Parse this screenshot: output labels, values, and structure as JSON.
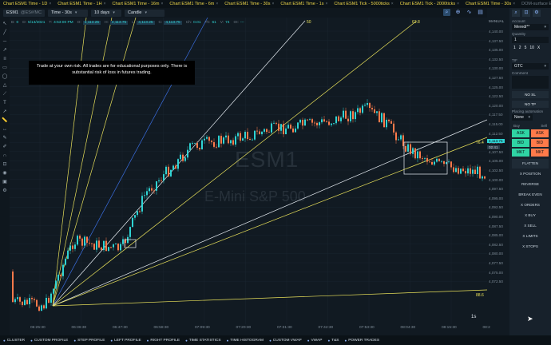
{
  "tabs": [
    {
      "label": "Chart ESM1 Time - 1D",
      "active": true
    },
    {
      "label": "Chart ESM1 Time - 1H",
      "active": true
    },
    {
      "label": "Chart ESM1 Time - 16m",
      "active": true
    },
    {
      "label": "Chart ESM1 Time - 6m",
      "active": true
    },
    {
      "label": "Chart ESM1 Time - 30s",
      "active": true
    },
    {
      "label": "Chart ESM1 Time - 1s",
      "active": true
    },
    {
      "label": "Chart ESM1 Tick - 5000ticks",
      "active": true
    },
    {
      "label": "Chart ESM1 Tick - 2000ticks",
      "active": true
    },
    {
      "label": "Chart ESM1 Time - 30s",
      "active": true
    },
    {
      "label": "DOM-surface ESM1",
      "active": false
    }
  ],
  "toolbar": {
    "symbol": "ESM1",
    "symbol_sub": "@ES#/MC",
    "timeframe": "Time - 30s",
    "range": "10 days",
    "chart_style": "Candle"
  },
  "info": [
    {
      "k": "B:",
      "v": "0"
    },
    {
      "k": "D:",
      "v": "5/13/2021"
    },
    {
      "k": "T:",
      "v": "4:53:00 PM"
    },
    {
      "k": "O:",
      "v": "4,113.25"
    },
    {
      "k": "H:",
      "v": "4,113.75"
    },
    {
      "k": "L:",
      "v": "4,113.25"
    },
    {
      "k": "C:",
      "v": "4,113.75"
    },
    {
      "k": "Ch:",
      "v": "0.01"
    },
    {
      "k": "Th:",
      "v": "61"
    },
    {
      "k": "V:",
      "v": "74"
    },
    {
      "k": "OI:",
      "v": "---"
    }
  ],
  "disclaimer": "Trade at your own risk. All trades are for educational purposes only. There is substantial risk of loss in futures trading.",
  "watermark": {
    "symbol": "ESM1",
    "name": "E-Mini S&P 500"
  },
  "fan_labels": {
    "top_a": "50",
    "top_b": "61.8",
    "mid": "76.4",
    "low": "88.6"
  },
  "price_axis": {
    "header": "MANUAL",
    "ticks": [
      "4,140.00",
      "4,137.50",
      "4,135.00",
      "4,132.50",
      "4,130.00",
      "4,127.50",
      "4,125.00",
      "4,122.50",
      "4,120.00",
      "4,117.50",
      "4,115.00",
      "4,112.50",
      "4,110.00",
      "4,107.50",
      "4,105.00",
      "4,102.50",
      "4,100.00",
      "4,097.50",
      "4,095.00",
      "4,092.50",
      "4,090.00",
      "4,087.50",
      "4,085.00",
      "4,082.50",
      "4,080.00",
      "4,077.50",
      "4,075.00",
      "4,072.50"
    ],
    "current_price": "4,113.75",
    "current_time": "02:41"
  },
  "time_axis": [
    "06:25:30",
    "06:36:30",
    "06:47:30",
    "06:58:30",
    "07:09:30",
    "07:20:30",
    "07:31:30",
    "07:42:30",
    "07:53:30",
    "08:04:30",
    "08:15:30",
    "08:2"
  ],
  "time_unit": "1s",
  "right_panel": {
    "account_label": "Account",
    "account": "Meredi**",
    "quantity_label": "Quantity",
    "quantity": "1",
    "qty_presets": [
      "1",
      "2",
      "5",
      "10",
      "X"
    ],
    "tif_label": "TIF",
    "tif": "GTC",
    "comment_label": "Comment",
    "no_sl": "NO SL",
    "no_tp": "NO TP",
    "placing_label": "Placing automation",
    "placing": "None",
    "buy_label": "Buy",
    "sell_label": "Sell",
    "ask": "ASK",
    "bid": "BID",
    "mkt": "MKT",
    "actions": [
      "FLATTEN",
      "X POSITION",
      "REVERSE",
      "BREAK EVEN",
      "X ORDERS",
      "X BUY",
      "X SELL",
      "X LIMITS",
      "X STOPS"
    ]
  },
  "bottom_bar": [
    "CLUSTER",
    "CUSTOM PROFILE",
    "STEP PROFILE",
    "LEFT PROFILE",
    "RIGHT PROFILE",
    "TIME STATISTICS",
    "TIME HISTOGRAM",
    "CUSTOM VWAP",
    "VWAP",
    "T&S",
    "POWER TRADES"
  ],
  "colors": {
    "up": "#2fd4d4",
    "down": "#ff7a4a",
    "fan_yellow": "#e8e05a",
    "fan_white": "#e8eef4",
    "fan_blue": "#3a6ee0"
  }
}
